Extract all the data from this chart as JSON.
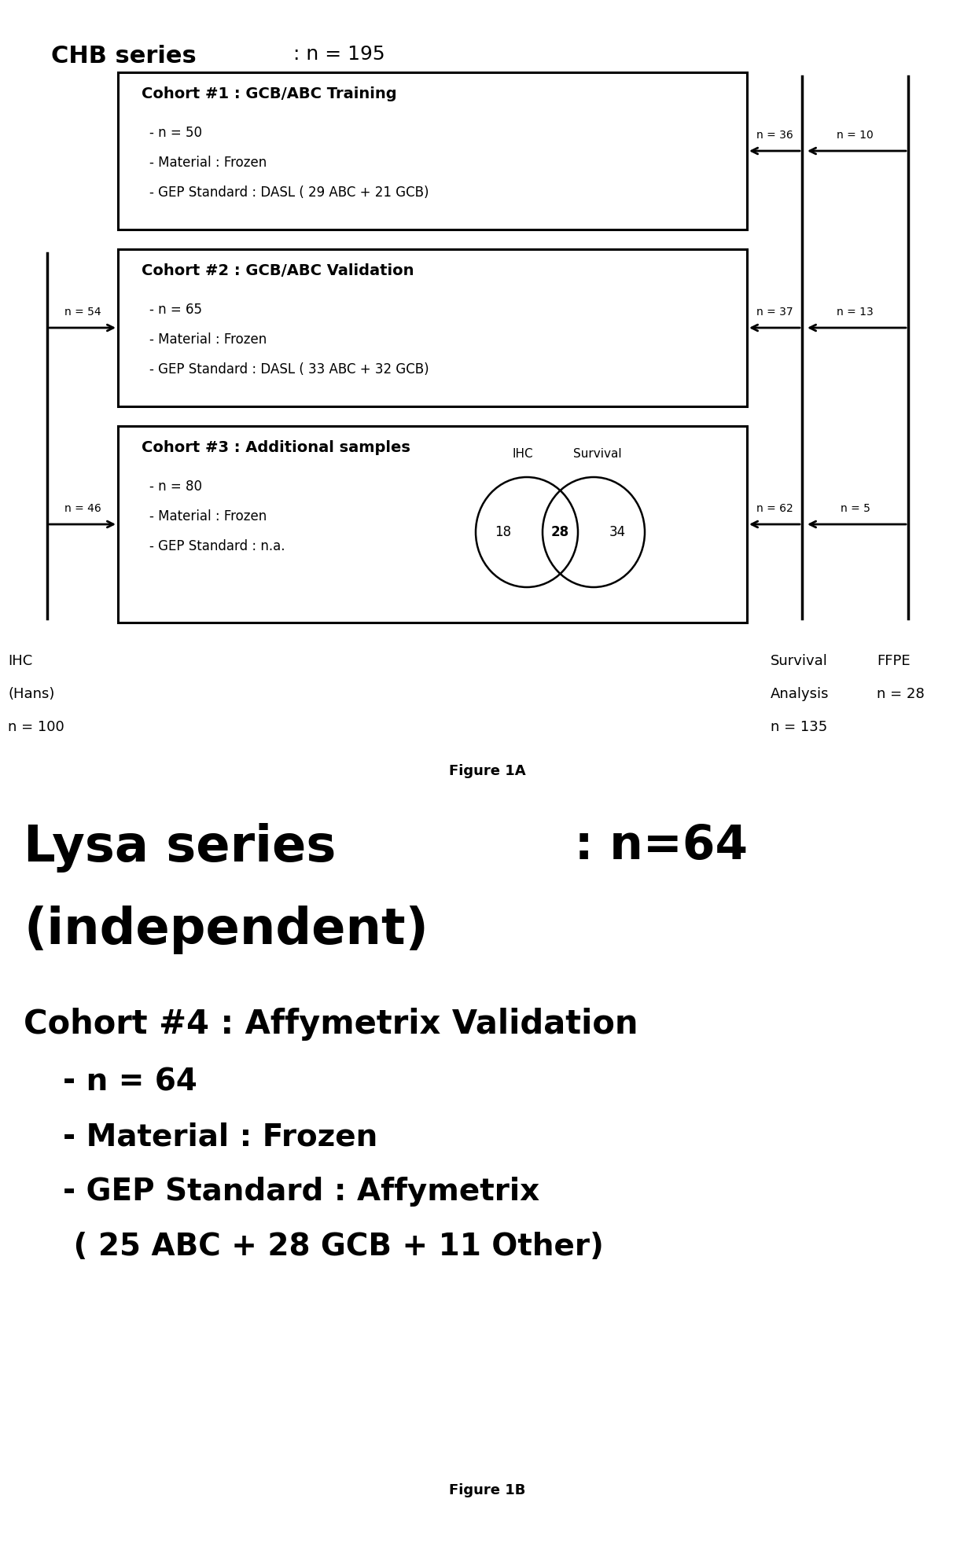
{
  "bg_color": "#ffffff",
  "fig_width": 12.4,
  "fig_height": 19.77,
  "chb_title": "CHB series",
  "chb_subtitle": " : n = 195",
  "cohort1_title": "Cohort #1 : GCB/ABC Training",
  "cohort1_lines": [
    "- n = 50",
    "- Material : Frozen",
    "- GEP Standard : DASL ( 29 ABC + 21 GCB)"
  ],
  "cohort2_title": "Cohort #2 : GCB/ABC Validation",
  "cohort2_lines": [
    "- n = 65",
    "- Material : Frozen",
    "- GEP Standard : DASL ( 33 ABC + 32 GCB)"
  ],
  "cohort3_title": "Cohort #3 : Additional samples",
  "cohort3_lines": [
    "- n = 80",
    "- Material : Frozen",
    "- GEP Standard : n.a."
  ],
  "venn_labels": [
    "IHC",
    "Survival"
  ],
  "venn_numbers": [
    "18",
    "28",
    "34"
  ],
  "arrow_labels": {
    "n36": "n = 36",
    "n10": "n = 10",
    "n54": "n = 54",
    "n37": "n = 37",
    "n13": "n = 13",
    "n46": "n = 46",
    "n62": "n = 62",
    "n5": "n = 5"
  },
  "bottom_labels": {
    "ihc": [
      "IHC",
      "(Hans)",
      "n = 100"
    ],
    "survival": [
      "Survival",
      "Analysis",
      "n = 135"
    ],
    "ffpe": [
      "FFPE",
      "n = 28"
    ]
  },
  "figure1a_caption": "Figure 1A",
  "lysa_title": "Lysa series",
  "lysa_colon": " : n=64",
  "lysa_subtitle": "(independent)",
  "cohort4_title": "Cohort #4 : Affymetrix Validation",
  "cohort4_lines": [
    "- n = 64",
    "- Material : Frozen",
    "- GEP Standard : Affymetrix",
    " ( 25 ABC + 28 GCB + 11 Other)"
  ],
  "figure1b_caption": "Figure 1B"
}
